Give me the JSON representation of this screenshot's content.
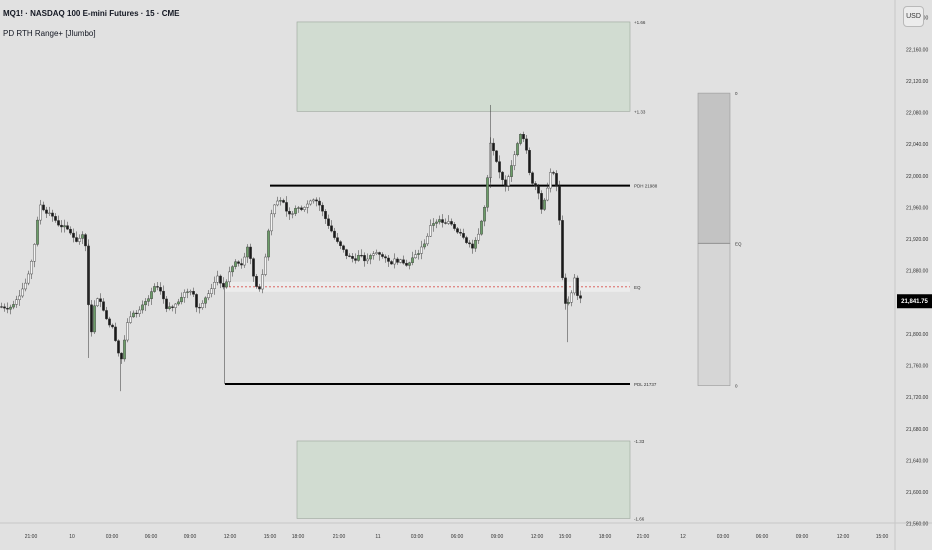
{
  "header": {
    "symbol": "MQ1! · NASDAQ 100 E-mini Futures · 15 · CME",
    "indicator": "PD RTH Range+ [Jlumbo]"
  },
  "scale": {
    "currency": "USD"
  },
  "colors": {
    "background": "#e1e1e1",
    "up": "#6c9d68",
    "down": "#1a1a1a",
    "zone": "#d1dcd1",
    "eq_line": "#d9534f"
  },
  "chart_data": {
    "type": "candlestick",
    "y_axis": {
      "range": [
        21530,
        22240
      ],
      "ticks": [
        "22,200.00",
        "22,160.00",
        "22,120.00",
        "22,080.00",
        "22,040.00",
        "22,000.00",
        "21,960.00",
        "21,920.00",
        "21,880.00",
        "21,840.00",
        "21,800.00",
        "21,760.00",
        "21,720.00",
        "21,680.00",
        "21,640.00",
        "21,600.00",
        "21,560.00"
      ]
    },
    "x_axis": {
      "ticks": [
        "21:00",
        "10",
        "03:00",
        "06:00",
        "09:00",
        "12:00",
        "15:00",
        "18:00",
        "21:00",
        "11",
        "03:00",
        "06:00",
        "09:00",
        "12:00",
        "15:00",
        "18:00",
        "21:00",
        "12",
        "03:00",
        "06:00",
        "09:00",
        "12:00",
        "15:00"
      ]
    },
    "last_price": {
      "label": "21,841.75",
      "value": 21841.75
    },
    "levels": [
      {
        "label": "PDH 21988",
        "value": 21988
      },
      {
        "label": "EQ",
        "value": 21860
      },
      {
        "label": "PDL 21737",
        "value": 21737
      }
    ],
    "zones": [
      {
        "top_label": "+1.66",
        "top": 22195,
        "bottom_label": "+1.33",
        "bottom": 22082
      },
      {
        "top_label": "-1.33",
        "top": 21665,
        "bottom_label": "-1.66",
        "bottom": 21567
      }
    ],
    "range_box": {
      "top_label": "0",
      "top": 22105,
      "mid_label": "EQ",
      "mid": 21915,
      "bottom_label": "0",
      "bottom": 21735
    },
    "path": [
      [
        0,
        21835
      ],
      [
        10,
        21834
      ],
      [
        20,
        21852
      ],
      [
        28,
        21870
      ],
      [
        34,
        21910
      ],
      [
        40,
        21965
      ],
      [
        44,
        21958
      ],
      [
        52,
        21950
      ],
      [
        58,
        21940
      ],
      [
        64,
        21935
      ],
      [
        70,
        21930
      ],
      [
        76,
        21918
      ],
      [
        82,
        21925
      ],
      [
        86,
        21910
      ],
      [
        90,
        21790
      ],
      [
        96,
        21850
      ],
      [
        102,
        21838
      ],
      [
        108,
        21815
      ],
      [
        114,
        21805
      ],
      [
        118,
        21778
      ],
      [
        122,
        21768
      ],
      [
        126,
        21808
      ],
      [
        132,
        21830
      ],
      [
        138,
        21825
      ],
      [
        144,
        21838
      ],
      [
        150,
        21848
      ],
      [
        156,
        21862
      ],
      [
        162,
        21850
      ],
      [
        168,
        21830
      ],
      [
        176,
        21840
      ],
      [
        184,
        21852
      ],
      [
        192,
        21858
      ],
      [
        198,
        21830
      ],
      [
        205,
        21848
      ],
      [
        212,
        21860
      ],
      [
        218,
        21872
      ],
      [
        224,
        21858
      ],
      [
        230,
        21880
      ],
      [
        236,
        21892
      ],
      [
        242,
        21885
      ],
      [
        248,
        21915
      ],
      [
        252,
        21880
      ],
      [
        258,
        21855
      ],
      [
        262,
        21868
      ],
      [
        266,
        21905
      ],
      [
        270,
        21948
      ],
      [
        276,
        21972
      ],
      [
        282,
        21970
      ],
      [
        288,
        21948
      ],
      [
        294,
        21958
      ],
      [
        300,
        21960
      ],
      [
        306,
        21962
      ],
      [
        312,
        21972
      ],
      [
        318,
        21968
      ],
      [
        324,
        21950
      ],
      [
        330,
        21935
      ],
      [
        336,
        21918
      ],
      [
        342,
        21908
      ],
      [
        348,
        21898
      ],
      [
        354,
        21895
      ],
      [
        360,
        21900
      ],
      [
        366,
        21892
      ],
      [
        372,
        21900
      ],
      [
        378,
        21905
      ],
      [
        384,
        21895
      ],
      [
        390,
        21890
      ],
      [
        396,
        21895
      ],
      [
        402,
        21890
      ],
      [
        408,
        21888
      ],
      [
        414,
        21898
      ],
      [
        420,
        21905
      ],
      [
        426,
        21920
      ],
      [
        432,
        21940
      ],
      [
        438,
        21945
      ],
      [
        444,
        21938
      ],
      [
        450,
        21942
      ],
      [
        456,
        21932
      ],
      [
        462,
        21928
      ],
      [
        468,
        21915
      ],
      [
        474,
        21910
      ],
      [
        480,
        21935
      ],
      [
        486,
        21968
      ],
      [
        490,
        22042
      ],
      [
        494,
        22028
      ],
      [
        498,
        22008
      ],
      [
        502,
        21998
      ],
      [
        506,
        21988
      ],
      [
        510,
        22010
      ],
      [
        514,
        22025
      ],
      [
        518,
        22042
      ],
      [
        522,
        22058
      ],
      [
        526,
        22035
      ],
      [
        530,
        21998
      ],
      [
        534,
        21990
      ],
      [
        538,
        21985
      ],
      [
        542,
        21955
      ],
      [
        546,
        21975
      ],
      [
        550,
        22008
      ],
      [
        554,
        22000
      ],
      [
        558,
        21980
      ],
      [
        562,
        21880
      ],
      [
        566,
        21830
      ],
      [
        570,
        21845
      ],
      [
        574,
        21872
      ],
      [
        578,
        21848
      ],
      [
        582,
        21842
      ]
    ]
  }
}
